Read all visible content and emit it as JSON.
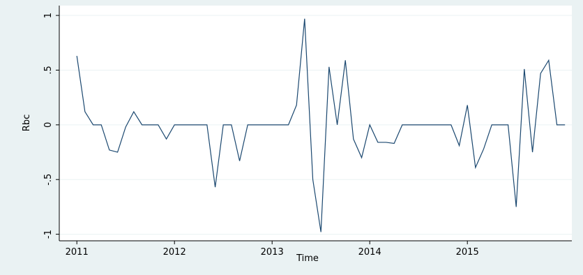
{
  "chart_data": {
    "type": "line",
    "x_label": "Time",
    "y_label": "Rbc",
    "x": [
      2011,
      2011.083,
      2011.167,
      2011.25,
      2011.333,
      2011.417,
      2011.5,
      2011.583,
      2011.667,
      2011.75,
      2011.833,
      2011.917,
      2012,
      2012.083,
      2012.167,
      2012.25,
      2012.333,
      2012.417,
      2012.5,
      2012.583,
      2012.667,
      2012.75,
      2012.833,
      2012.917,
      2013,
      2013.083,
      2013.167,
      2013.25,
      2013.333,
      2013.417,
      2013.5,
      2013.583,
      2013.667,
      2013.75,
      2013.833,
      2013.917,
      2014,
      2014.083,
      2014.167,
      2014.25,
      2014.333,
      2014.417,
      2014.5,
      2014.583,
      2014.667,
      2014.75,
      2014.833,
      2014.917,
      2015,
      2015.083,
      2015.167,
      2015.25,
      2015.333,
      2015.417,
      2015.5,
      2015.583,
      2015.667,
      2015.75,
      2015.833,
      2015.917,
      2016
    ],
    "series": [
      {
        "name": "Rbc",
        "color": "#1a476f",
        "values": [
          0.63,
          0.12,
          0,
          0,
          -0.23,
          -0.25,
          -0.02,
          0.12,
          0,
          0,
          0,
          -0.13,
          0,
          0,
          0,
          0,
          0,
          -0.57,
          0,
          0,
          -0.33,
          0,
          0,
          0,
          0,
          0,
          0,
          0.18,
          0.97,
          -0.5,
          -0.98,
          0.53,
          0,
          0.59,
          -0.13,
          -0.3,
          0,
          -0.16,
          -0.16,
          -0.17,
          0,
          0,
          0,
          0,
          0,
          0,
          0,
          -0.19,
          0.18,
          -0.39,
          -0.22,
          0,
          0,
          0,
          -0.75,
          0.51,
          -0.25,
          0.47,
          0.59,
          0,
          0
        ]
      }
    ],
    "xlim": [
      2010.82,
      2016.07
    ],
    "ylim": [
      -1.06,
      1.09
    ],
    "xticks": [
      2011,
      2012,
      2013,
      2014,
      2015
    ],
    "yticks": [
      -1,
      {
        "value": -0.5,
        "label": "-.5"
      },
      0,
      {
        "value": 0.5,
        "label": ".5"
      },
      1
    ],
    "grid": true
  }
}
